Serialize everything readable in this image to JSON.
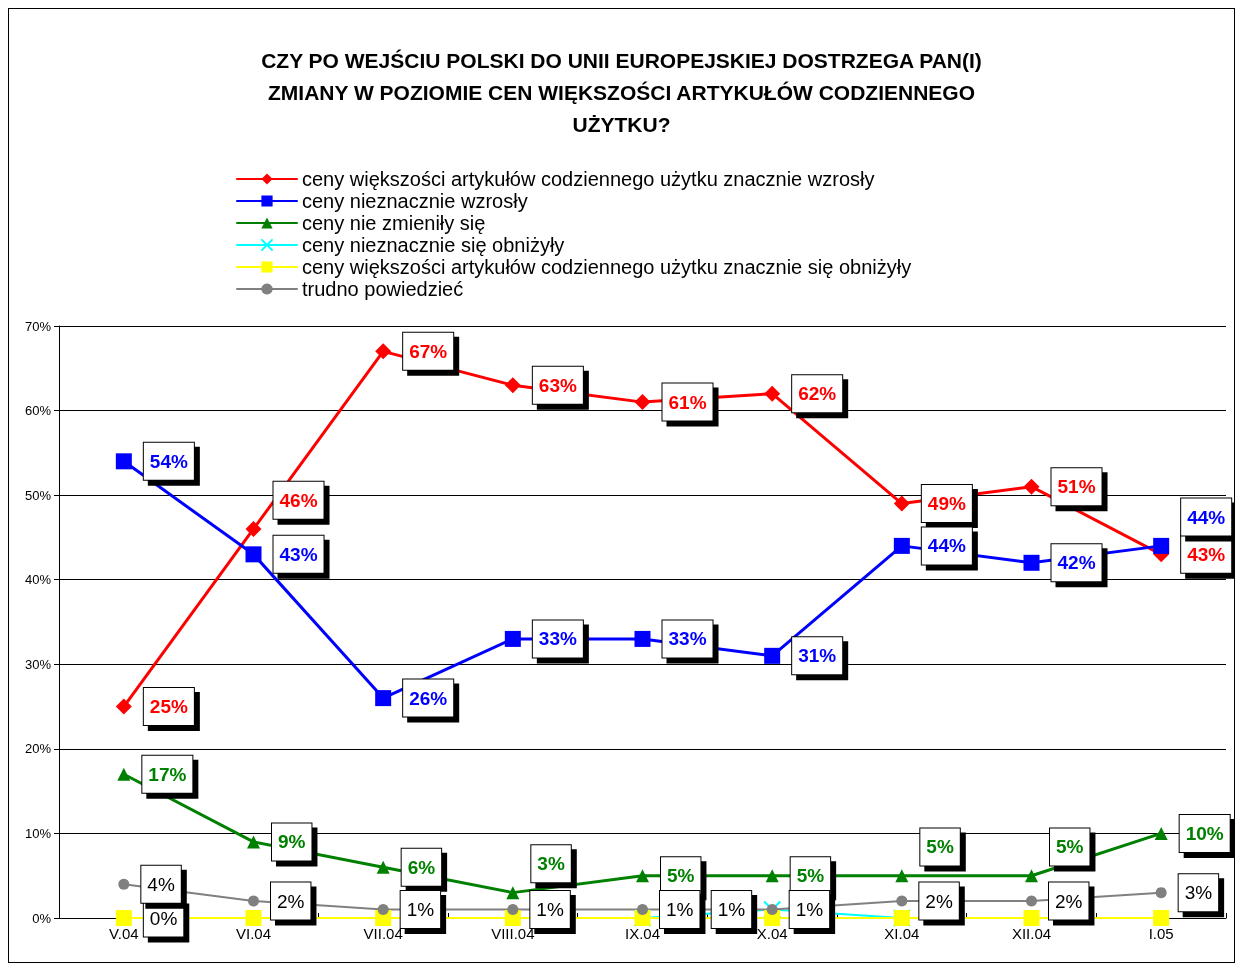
{
  "chart_data": {
    "type": "line",
    "title": "CZY PO WEJŚCIU POLSKI DO UNII EUROPEJSKIEJ DOSTRZEGA PAN(I)\nZMIANY W POZIOMIE CEN WIĘKSZOŚCI ARTYKUŁÓW CODZIENNEGO\nUŻYTKU?",
    "categories": [
      "V.04",
      "VI.04",
      "VII.04",
      "VIII.04",
      "IX.04",
      "X.04",
      "XI.04",
      "XII.04",
      "I.05"
    ],
    "series": [
      {
        "name": "ceny większości artykułów codziennego użytku znacznie wzrosły",
        "color": "#ff0000",
        "marker": "diamond",
        "values": [
          25,
          46,
          67,
          63,
          61,
          62,
          49,
          51,
          43
        ],
        "value_labels": [
          "25%",
          "46%",
          "67%",
          "63%",
          "61%",
          "62%",
          "49%",
          "51%",
          "43%"
        ]
      },
      {
        "name": "ceny nieznacznie wzrosły",
        "color": "#0000ff",
        "marker": "square",
        "values": [
          54,
          43,
          26,
          33,
          33,
          31,
          44,
          42,
          44
        ],
        "value_labels": [
          "54%",
          "43%",
          "26%",
          "33%",
          "33%",
          "31%",
          "44%",
          "42%",
          "44%"
        ]
      },
      {
        "name": "ceny nie zmieniły się",
        "color": "#008000",
        "marker": "triangle",
        "values": [
          17,
          9,
          6,
          3,
          5,
          5,
          5,
          5,
          10
        ],
        "value_labels": [
          "17%",
          "9%",
          "6%",
          "3%",
          "5%",
          "5%",
          "5%",
          "5%",
          "10%"
        ]
      },
      {
        "name": "ceny nieznacznie się obniżyły",
        "color": "#00ffff",
        "marker": "cross",
        "values": [
          null,
          null,
          null,
          null,
          0,
          1,
          0,
          null,
          null
        ],
        "value_labels": [
          null,
          null,
          null,
          null,
          null,
          "1%",
          null,
          null,
          null
        ]
      },
      {
        "name": "ceny większości artykułów codziennego użytku znacznie się obniżyły",
        "color": "#ffff00",
        "marker": "square",
        "values": [
          0,
          0,
          0,
          0,
          0,
          0,
          0,
          0,
          0
        ],
        "value_labels": [
          "0%",
          null,
          null,
          null,
          null,
          null,
          null,
          null,
          null
        ]
      },
      {
        "name": "trudno powiedzieć",
        "color": "#808080",
        "marker": "circle",
        "values": [
          4,
          2,
          1,
          1,
          1,
          1,
          2,
          2,
          3
        ],
        "value_labels": [
          "4%",
          "2%",
          "1%",
          "1%",
          "1%",
          "1%",
          "2%",
          "2%",
          "3%"
        ]
      }
    ],
    "ylim": [
      0,
      70
    ],
    "yticks": [
      {
        "value": 0,
        "label": "0%"
      },
      {
        "value": 10,
        "label": "10%"
      },
      {
        "value": 20,
        "label": "20%"
      },
      {
        "value": 30,
        "label": "30%"
      },
      {
        "value": 40,
        "label": "40%"
      },
      {
        "value": 50,
        "label": "50%"
      },
      {
        "value": 60,
        "label": "60%"
      },
      {
        "value": 70,
        "label": "70%"
      }
    ],
    "grid": "y",
    "legend": "top"
  }
}
